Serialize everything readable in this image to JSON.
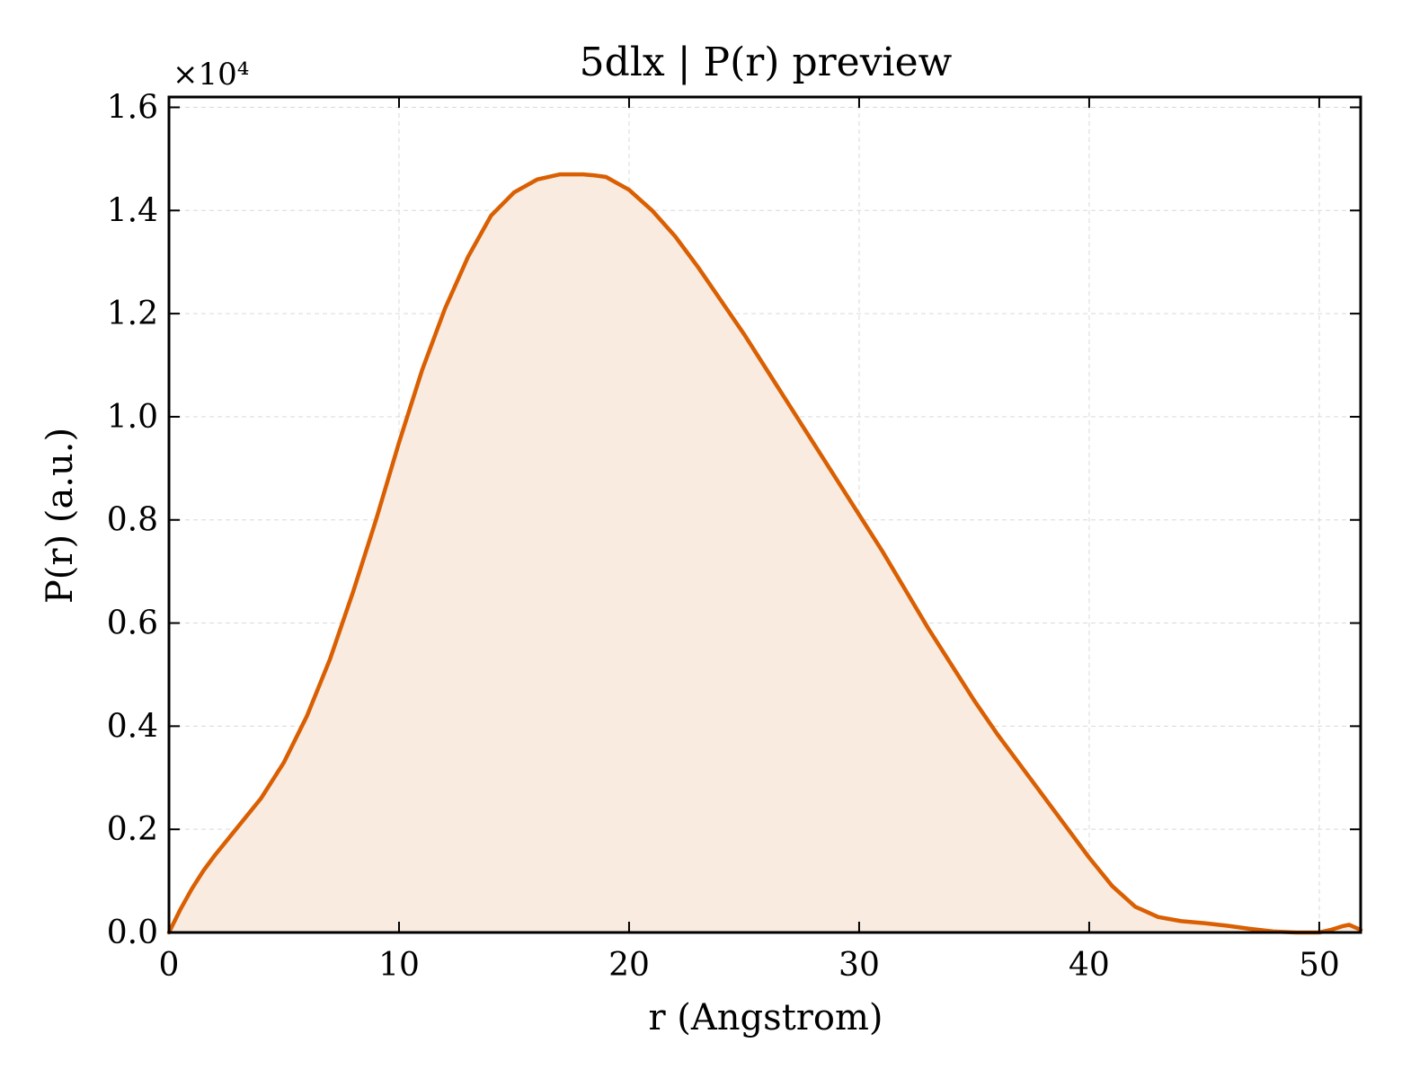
{
  "chart_data": {
    "type": "area",
    "title": "5dlx | P(r) preview",
    "xlabel": "r (Angstrom)",
    "ylabel": "P(r) (a.u.)",
    "y_multiplier_label": "×10⁴",
    "xlim": [
      0,
      51.8
    ],
    "ylim": [
      0,
      1.62
    ],
    "x_ticks": [
      0,
      10,
      20,
      30,
      40,
      50
    ],
    "x_tick_labels": [
      "0",
      "10",
      "20",
      "30",
      "40",
      "50"
    ],
    "y_ticks": [
      0,
      0.2,
      0.4,
      0.6,
      0.8,
      1.0,
      1.2,
      1.4,
      1.6
    ],
    "y_tick_labels": [
      "0.0",
      "0.2",
      "0.4",
      "0.6",
      "0.8",
      "1.0",
      "1.2",
      "1.4",
      "1.6"
    ],
    "grid": true,
    "colors": {
      "line": "#d95f02",
      "fill": "#f9ebe0",
      "grid": "#d9d9d9",
      "axis": "#000000"
    },
    "series": [
      {
        "x": [
          0,
          0.5,
          1,
          1.5,
          2,
          3,
          4,
          5,
          6,
          7,
          8,
          9,
          10,
          11,
          12,
          13,
          14,
          15,
          16,
          17,
          18,
          18.5,
          19,
          20,
          21,
          22,
          23,
          24,
          25,
          26,
          27,
          28,
          29,
          30,
          31,
          32,
          33,
          34,
          35,
          36,
          37,
          38,
          39,
          40,
          41,
          42,
          43,
          44,
          45,
          46,
          47,
          48,
          49,
          50,
          50.5,
          51,
          51.3,
          51.8
        ],
        "y": [
          0.0,
          0.045,
          0.085,
          0.12,
          0.15,
          0.205,
          0.26,
          0.33,
          0.42,
          0.53,
          0.66,
          0.8,
          0.95,
          1.09,
          1.21,
          1.31,
          1.39,
          1.435,
          1.46,
          1.47,
          1.47,
          1.468,
          1.465,
          1.44,
          1.4,
          1.35,
          1.29,
          1.225,
          1.16,
          1.09,
          1.02,
          0.95,
          0.88,
          0.81,
          0.74,
          0.665,
          0.59,
          0.52,
          0.45,
          0.385,
          0.325,
          0.265,
          0.205,
          0.145,
          0.09,
          0.05,
          0.03,
          0.022,
          0.018,
          0.013,
          0.007,
          0.002,
          0.0,
          0.0,
          0.005,
          0.012,
          0.015,
          0.005
        ]
      }
    ]
  }
}
